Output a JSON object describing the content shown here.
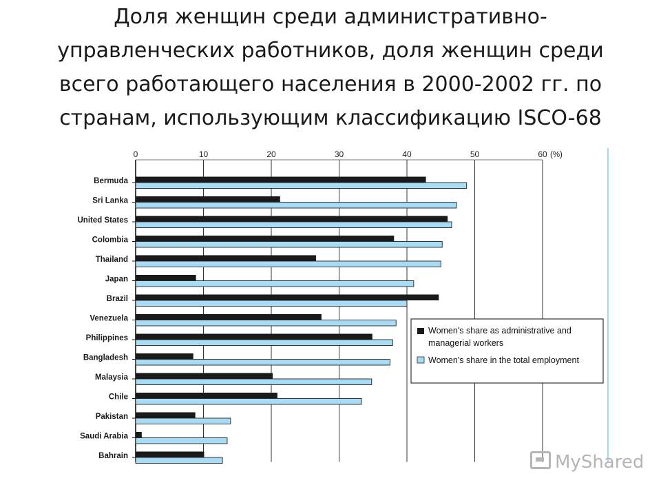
{
  "title_lines": [
    "Доля женщин среди административно-",
    "управленческих работников, доля женщин среди",
    "всего работающего населения в 2000-2002 гг. по",
    "странам, использующим классификацию  ISCO-68"
  ],
  "watermark": "MyShared",
  "colors": {
    "series1": "#1a1a1a",
    "series2": "#a8dcf4",
    "bar_outline": "#222222",
    "grid": "#333333",
    "accent_line": "#8ecfe8"
  },
  "chart_data": {
    "type": "bar",
    "orientation": "horizontal",
    "unit_label": "(%)",
    "xlim": [
      0,
      60
    ],
    "xticks": [
      0,
      10,
      20,
      30,
      40,
      50,
      60
    ],
    "tick_position": "top",
    "grid": true,
    "legend_position": "right-middle",
    "categories": [
      "Bermuda",
      "Sri Lanka",
      "United States",
      "Colombia",
      "Thailand",
      "Japan",
      "Brazil",
      "Venezuela",
      "Philippines",
      "Bangladesh",
      "Malaysia",
      "Chile",
      "Pakistan",
      "Saudi Arabia",
      "Bahrain"
    ],
    "series": [
      {
        "name": "Women's share as administrative and managerial workers",
        "values": [
          42.8,
          21.3,
          46.0,
          38.1,
          26.6,
          8.9,
          44.7,
          27.4,
          34.9,
          8.5,
          20.2,
          20.9,
          8.8,
          0.9,
          10.1
        ]
      },
      {
        "name": "Women's share in the total employment",
        "values": [
          48.8,
          47.3,
          46.6,
          45.2,
          45.0,
          41.0,
          40.0,
          38.4,
          37.9,
          37.5,
          34.8,
          33.3,
          14.0,
          13.5,
          12.8
        ]
      }
    ]
  }
}
